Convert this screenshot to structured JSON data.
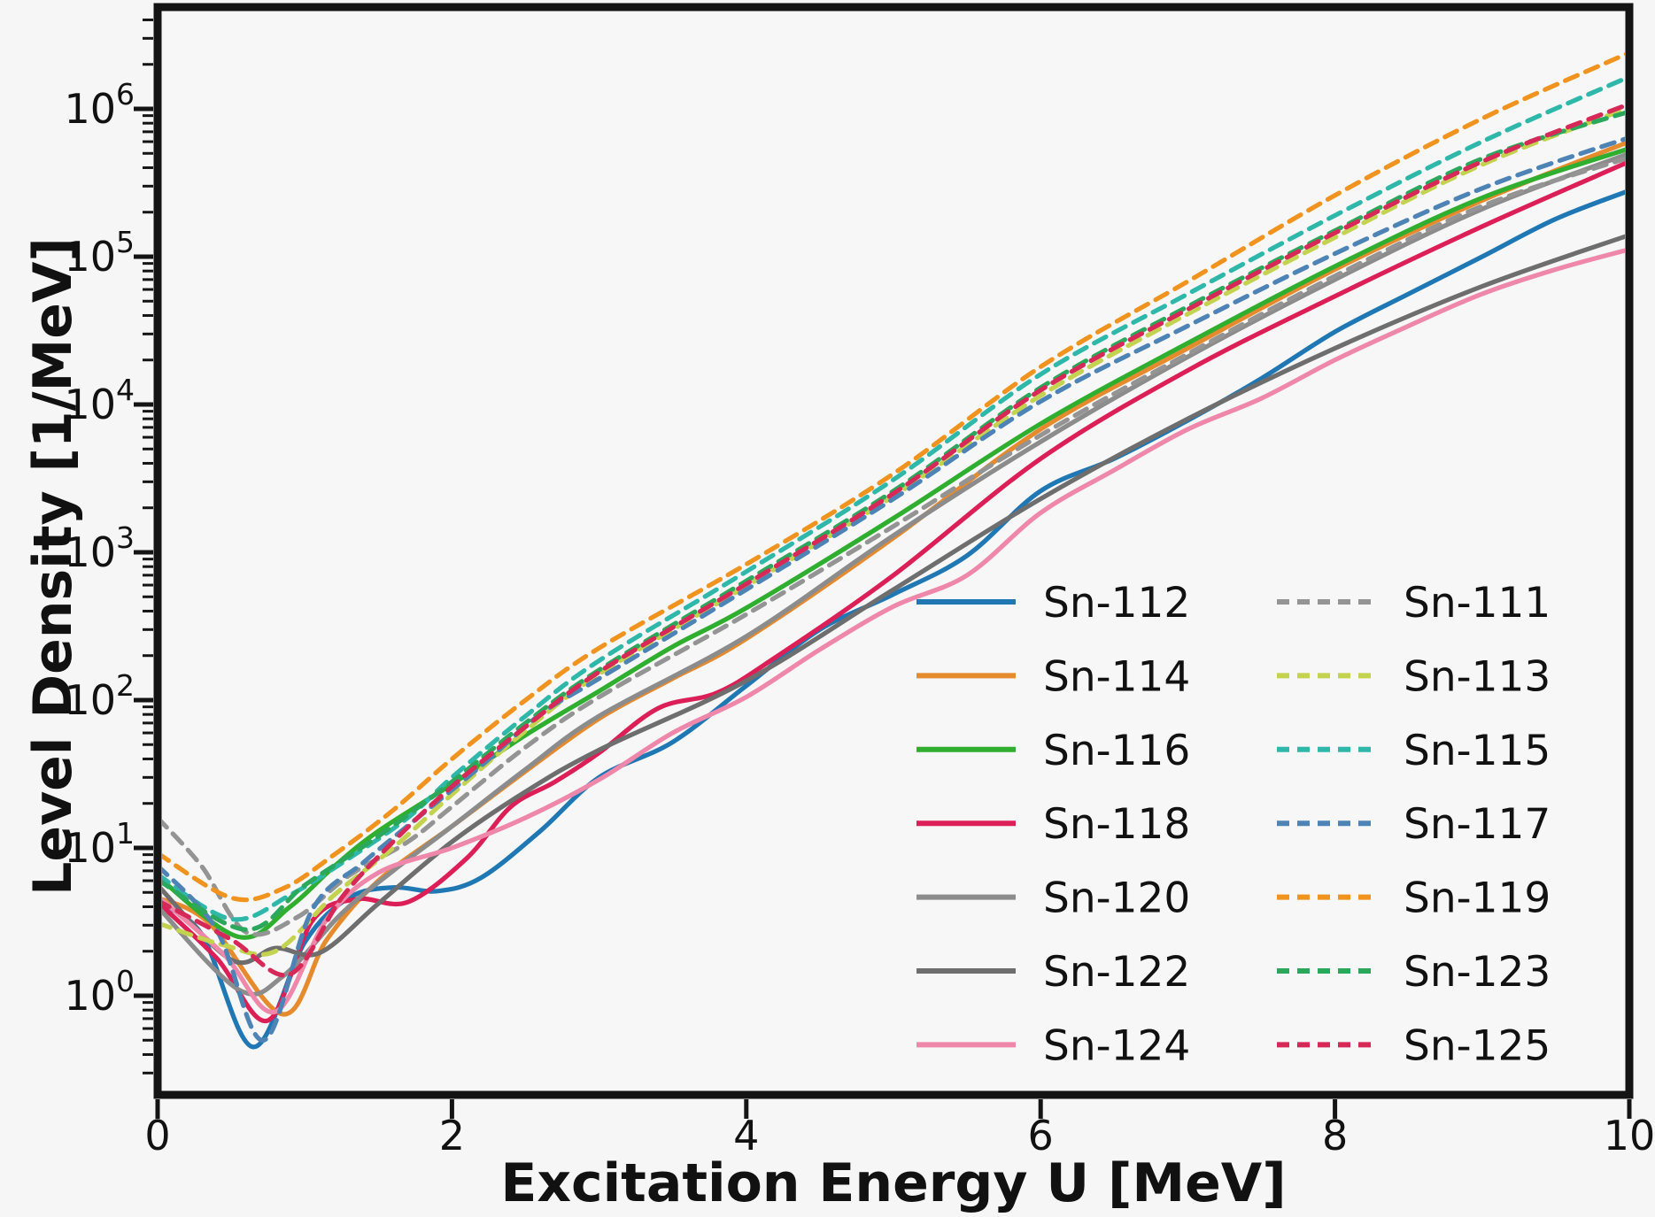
{
  "figure": {
    "background": "#f6f6f6",
    "plot_background": "#f7f7f7",
    "spine_color": "#141414",
    "tick_color": "#141414"
  },
  "chart_data": {
    "type": "line",
    "title": "",
    "xlabel": "Excitation Energy U [MeV]",
    "ylabel": "Level Density [1/MeV]",
    "xlim": [
      0,
      10
    ],
    "x_ticks": [
      0,
      2,
      4,
      6,
      8,
      10
    ],
    "y_scale": "log",
    "ylim": [
      0.212,
      4700000
    ],
    "y_tick_exponents": [
      0,
      1,
      2,
      3,
      4,
      5,
      6
    ],
    "grid": false,
    "legend_position": "lower right, two columns, no frame",
    "series": [
      {
        "name": "Sn-112",
        "style": "solid",
        "color": "#1f77b4",
        "points": [
          [
            0,
            4.2
          ],
          [
            0.3,
            2.6
          ],
          [
            0.65,
            0.45
          ],
          [
            1.0,
            2.3
          ],
          [
            1.3,
            4.6
          ],
          [
            1.6,
            5.4
          ],
          [
            1.9,
            5.1
          ],
          [
            2.2,
            6.3
          ],
          [
            2.6,
            13
          ],
          [
            3.0,
            30
          ],
          [
            3.5,
            52
          ],
          [
            4.0,
            125
          ],
          [
            4.5,
            300
          ],
          [
            5.0,
            520
          ],
          [
            5.5,
            950
          ],
          [
            6.0,
            2600
          ],
          [
            6.5,
            4300
          ],
          [
            7.0,
            7800
          ],
          [
            7.5,
            15000
          ],
          [
            8.0,
            31000
          ],
          [
            8.5,
            56000
          ],
          [
            9.0,
            100000
          ],
          [
            9.5,
            180000
          ],
          [
            10,
            280000
          ]
        ]
      },
      {
        "name": "Sn-114",
        "style": "solid",
        "color": "#e68a2e",
        "points": [
          [
            0,
            4.6
          ],
          [
            0.35,
            3.1
          ],
          [
            0.85,
            0.75
          ],
          [
            1.15,
            2.4
          ],
          [
            1.5,
            6.0
          ],
          [
            2.0,
            14
          ],
          [
            2.5,
            33
          ],
          [
            3.0,
            75
          ],
          [
            3.5,
            140
          ],
          [
            4.0,
            260
          ],
          [
            5.0,
            1250
          ],
          [
            6.0,
            6800
          ],
          [
            7.0,
            24000
          ],
          [
            8.0,
            82000
          ],
          [
            9.0,
            240000
          ],
          [
            10,
            600000
          ]
        ]
      },
      {
        "name": "Sn-116",
        "style": "solid",
        "color": "#2fae2f",
        "points": [
          [
            0,
            6.4
          ],
          [
            0.55,
            2.5
          ],
          [
            0.9,
            4.0
          ],
          [
            1.2,
            7.5
          ],
          [
            1.5,
            13
          ],
          [
            2.0,
            27
          ],
          [
            2.5,
            58
          ],
          [
            3.0,
            115
          ],
          [
            3.5,
            230
          ],
          [
            4.0,
            420
          ],
          [
            5.0,
            1700
          ],
          [
            6.0,
            7400
          ],
          [
            7.0,
            26000
          ],
          [
            8.0,
            86000
          ],
          [
            9.0,
            250000
          ],
          [
            10,
            540000
          ]
        ]
      },
      {
        "name": "Sn-118",
        "style": "solid",
        "color": "#dc1f56",
        "points": [
          [
            0,
            4.3
          ],
          [
            0.4,
            1.8
          ],
          [
            0.75,
            0.68
          ],
          [
            1.05,
            3.2
          ],
          [
            1.35,
            4.5
          ],
          [
            1.7,
            4.3
          ],
          [
            2.1,
            8.5
          ],
          [
            2.4,
            19
          ],
          [
            2.7,
            28
          ],
          [
            3.0,
            44
          ],
          [
            3.4,
            88
          ],
          [
            3.8,
            112
          ],
          [
            4.2,
            195
          ],
          [
            5.0,
            700
          ],
          [
            6.0,
            4300
          ],
          [
            7.0,
            17000
          ],
          [
            8.0,
            54000
          ],
          [
            9.0,
            160000
          ],
          [
            10,
            440000
          ]
        ]
      },
      {
        "name": "Sn-120",
        "style": "solid",
        "color": "#8c8c8c",
        "points": [
          [
            0,
            4.0
          ],
          [
            0.55,
            1.1
          ],
          [
            0.85,
            1.35
          ],
          [
            1.25,
            3.6
          ],
          [
            1.6,
            7.0
          ],
          [
            2.0,
            14
          ],
          [
            2.5,
            34
          ],
          [
            3.0,
            78
          ],
          [
            4.0,
            270
          ],
          [
            5.0,
            1300
          ],
          [
            6.0,
            5600
          ],
          [
            7.0,
            21000
          ],
          [
            8.0,
            70000
          ],
          [
            9.0,
            210000
          ],
          [
            10,
            500000
          ]
        ]
      },
      {
        "name": "Sn-122",
        "style": "solid",
        "color": "#6e6e6e",
        "points": [
          [
            0,
            5.6
          ],
          [
            0.5,
            1.75
          ],
          [
            0.8,
            2.1
          ],
          [
            1.1,
            1.95
          ],
          [
            1.5,
            4.2
          ],
          [
            2.0,
            11
          ],
          [
            2.5,
            24
          ],
          [
            3.0,
            46
          ],
          [
            4.0,
            135
          ],
          [
            5.0,
            560
          ],
          [
            6.0,
            2300
          ],
          [
            7.0,
            8000
          ],
          [
            8.0,
            24000
          ],
          [
            9.0,
            63000
          ],
          [
            10,
            140000
          ]
        ]
      },
      {
        "name": "Sn-124",
        "style": "solid",
        "color": "#ef87ab",
        "points": [
          [
            0,
            4.7
          ],
          [
            0.45,
            1.9
          ],
          [
            0.8,
            0.78
          ],
          [
            1.15,
            3.3
          ],
          [
            1.5,
            6.8
          ],
          [
            2.0,
            10
          ],
          [
            2.5,
            16
          ],
          [
            3.0,
            29
          ],
          [
            3.5,
            60
          ],
          [
            4.0,
            105
          ],
          [
            4.5,
            220
          ],
          [
            5.0,
            430
          ],
          [
            5.5,
            700
          ],
          [
            6.0,
            1850
          ],
          [
            6.5,
            3600
          ],
          [
            7.0,
            6800
          ],
          [
            7.5,
            11000
          ],
          [
            8.0,
            20000
          ],
          [
            8.5,
            34000
          ],
          [
            9.0,
            56000
          ],
          [
            9.5,
            82000
          ],
          [
            10,
            112000
          ]
        ]
      },
      {
        "name": "Sn-111",
        "style": "dashed",
        "color": "#949494",
        "points": [
          [
            0,
            16
          ],
          [
            0.3,
            7.5
          ],
          [
            0.6,
            2.7
          ],
          [
            0.95,
            3.4
          ],
          [
            1.3,
            6.5
          ],
          [
            1.7,
            11
          ],
          [
            2.0,
            19
          ],
          [
            2.5,
            48
          ],
          [
            3.0,
            105
          ],
          [
            4.0,
            380
          ],
          [
            5.0,
            1500
          ],
          [
            6.0,
            6200
          ],
          [
            7.0,
            22000
          ],
          [
            8.0,
            74000
          ],
          [
            9.0,
            220000
          ],
          [
            10,
            470000
          ]
        ]
      },
      {
        "name": "Sn-113",
        "style": "dashed",
        "color": "#c3d24f",
        "points": [
          [
            0,
            3.1
          ],
          [
            0.45,
            2.2
          ],
          [
            0.8,
            2.0
          ],
          [
            1.2,
            4.8
          ],
          [
            1.6,
            10
          ],
          [
            2.0,
            23
          ],
          [
            2.5,
            62
          ],
          [
            3.0,
            150
          ],
          [
            4.0,
            590
          ],
          [
            5.0,
            2400
          ],
          [
            6.0,
            11500
          ],
          [
            7.0,
            41000
          ],
          [
            8.0,
            135000
          ],
          [
            9.0,
            420000
          ],
          [
            10,
            1020000
          ]
        ]
      },
      {
        "name": "Sn-115",
        "style": "dashed",
        "color": "#2fb8aa",
        "points": [
          [
            0,
            6.6
          ],
          [
            0.5,
            3.3
          ],
          [
            0.9,
            4.8
          ],
          [
            1.3,
            8.5
          ],
          [
            1.7,
            16
          ],
          [
            2.0,
            30
          ],
          [
            2.5,
            78
          ],
          [
            3.0,
            185
          ],
          [
            4.0,
            740
          ],
          [
            5.0,
            3100
          ],
          [
            6.0,
            16000
          ],
          [
            7.0,
            56000
          ],
          [
            8.0,
            190000
          ],
          [
            9.0,
            600000
          ],
          [
            10,
            1650000
          ]
        ]
      },
      {
        "name": "Sn-117",
        "style": "dashed",
        "color": "#4e84b5",
        "points": [
          [
            0,
            7.6
          ],
          [
            0.4,
            2.8
          ],
          [
            0.72,
            0.5
          ],
          [
            1.05,
            3.8
          ],
          [
            1.4,
            8.0
          ],
          [
            1.8,
            17
          ],
          [
            2.2,
            36
          ],
          [
            2.6,
            80
          ],
          [
            3.0,
            140
          ],
          [
            4.0,
            560
          ],
          [
            5.0,
            2300
          ],
          [
            6.0,
            10500
          ],
          [
            7.0,
            34000
          ],
          [
            8.0,
            105000
          ],
          [
            9.0,
            290000
          ],
          [
            10,
            640000
          ]
        ]
      },
      {
        "name": "Sn-119",
        "style": "dashed",
        "color": "#f0941f",
        "points": [
          [
            0,
            9.2
          ],
          [
            0.5,
            4.6
          ],
          [
            0.85,
            5.3
          ],
          [
            1.2,
            9.0
          ],
          [
            1.6,
            18
          ],
          [
            2.0,
            40
          ],
          [
            2.5,
            100
          ],
          [
            3.0,
            225
          ],
          [
            4.0,
            830
          ],
          [
            5.0,
            3400
          ],
          [
            6.0,
            18000
          ],
          [
            7.0,
            68000
          ],
          [
            8.0,
            260000
          ],
          [
            9.0,
            860000
          ],
          [
            10,
            2400000
          ]
        ]
      },
      {
        "name": "Sn-123",
        "style": "dashed",
        "color": "#2ca85c",
        "points": [
          [
            0,
            6.1
          ],
          [
            0.6,
            2.8
          ],
          [
            1.0,
            5.6
          ],
          [
            1.5,
            12
          ],
          [
            2.0,
            28
          ],
          [
            2.5,
            70
          ],
          [
            3.0,
            160
          ],
          [
            4.0,
            640
          ],
          [
            5.0,
            2600
          ],
          [
            6.0,
            13000
          ],
          [
            7.0,
            46000
          ],
          [
            8.0,
            150000
          ],
          [
            9.0,
            460000
          ],
          [
            10,
            960000
          ]
        ]
      },
      {
        "name": "Sn-125",
        "style": "dashed",
        "color": "#d62958",
        "points": [
          [
            0,
            4.4
          ],
          [
            0.5,
            2.4
          ],
          [
            0.9,
            1.4
          ],
          [
            1.25,
            4.6
          ],
          [
            1.6,
            11
          ],
          [
            2.0,
            26
          ],
          [
            2.5,
            66
          ],
          [
            3.0,
            155
          ],
          [
            4.0,
            610
          ],
          [
            5.0,
            2500
          ],
          [
            6.0,
            12500
          ],
          [
            7.0,
            44000
          ],
          [
            8.0,
            145000
          ],
          [
            9.0,
            440000
          ],
          [
            10,
            1080000
          ]
        ]
      }
    ]
  },
  "legend": {
    "left": [
      "Sn-112",
      "Sn-114",
      "Sn-116",
      "Sn-118",
      "Sn-120",
      "Sn-122",
      "Sn-124"
    ],
    "right": [
      "Sn-111",
      "Sn-113",
      "Sn-115",
      "Sn-117",
      "Sn-119",
      "Sn-123",
      "Sn-125"
    ]
  }
}
